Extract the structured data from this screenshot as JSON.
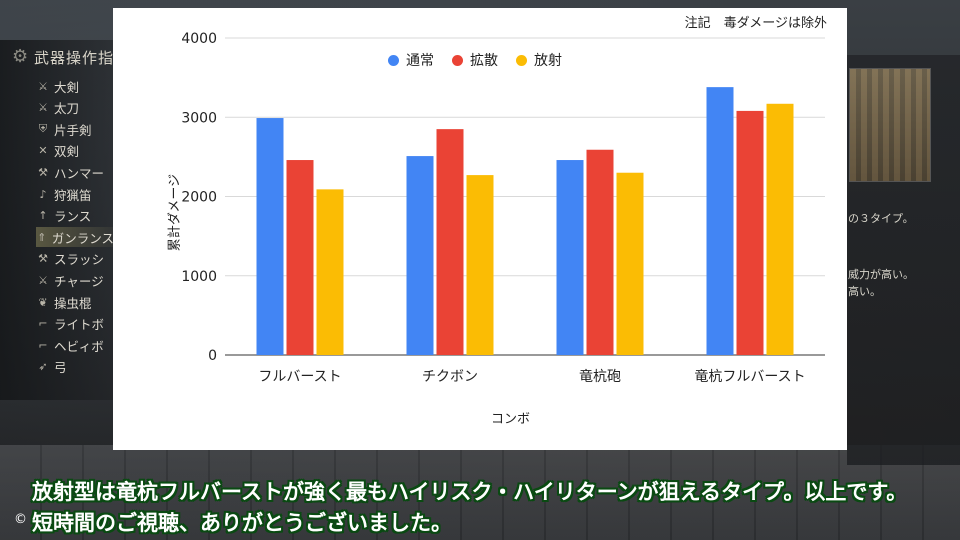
{
  "game_menu": {
    "title": "武器操作指",
    "items": [
      {
        "label": "大剣",
        "icon": "great-sword-icon"
      },
      {
        "label": "太刀",
        "icon": "long-sword-icon"
      },
      {
        "label": "片手剣",
        "icon": "sword-shield-icon"
      },
      {
        "label": "双剣",
        "icon": "dual-blades-icon"
      },
      {
        "label": "ハンマー",
        "icon": "hammer-icon"
      },
      {
        "label": "狩猟笛",
        "icon": "hunting-horn-icon"
      },
      {
        "label": "ランス",
        "icon": "lance-icon"
      },
      {
        "label": "ガンランス",
        "icon": "gunlance-icon",
        "selected": true
      },
      {
        "label": "スラッシ",
        "icon": "switch-axe-icon"
      },
      {
        "label": "チャージ",
        "icon": "charge-blade-icon"
      },
      {
        "label": "操虫棍",
        "icon": "insect-glaive-icon"
      },
      {
        "label": "ライトボ",
        "icon": "light-bowgun-icon"
      },
      {
        "label": "ヘビィボ",
        "icon": "heavy-bowgun-icon"
      },
      {
        "label": "弓",
        "icon": "bow-icon"
      }
    ]
  },
  "right_panel": {
    "lines": [
      "の３タイプ。",
      "威力が高い。",
      "高い。"
    ]
  },
  "chart_data": {
    "type": "bar",
    "note": "注記　毒ダメージは除外",
    "categories": [
      "フルバースト",
      "チクボン",
      "竜杭砲",
      "竜杭フルバースト"
    ],
    "series": [
      {
        "name": "通常",
        "color": "#4285f4",
        "values": [
          2990,
          2510,
          2460,
          3380
        ]
      },
      {
        "name": "拡散",
        "color": "#ea4335",
        "values": [
          2460,
          2850,
          2590,
          3080
        ]
      },
      {
        "name": "放射",
        "color": "#fbbc04",
        "values": [
          2090,
          2270,
          2300,
          3170
        ]
      }
    ],
    "ylabel": "累計ダメージ",
    "xlabel": "コンボ",
    "ylim": [
      0,
      4000
    ],
    "yticks": [
      0,
      1000,
      2000,
      3000,
      4000
    ],
    "grid": true,
    "legend_position": "top"
  },
  "subtitles": {
    "line1": "放射型は竜杭フルバーストが強く最もハイリスク・ハイリターンが狙えるタイプ。以上です。",
    "line2": "短時間のご視聴、ありがとうございました。"
  },
  "cc_icon": "©"
}
